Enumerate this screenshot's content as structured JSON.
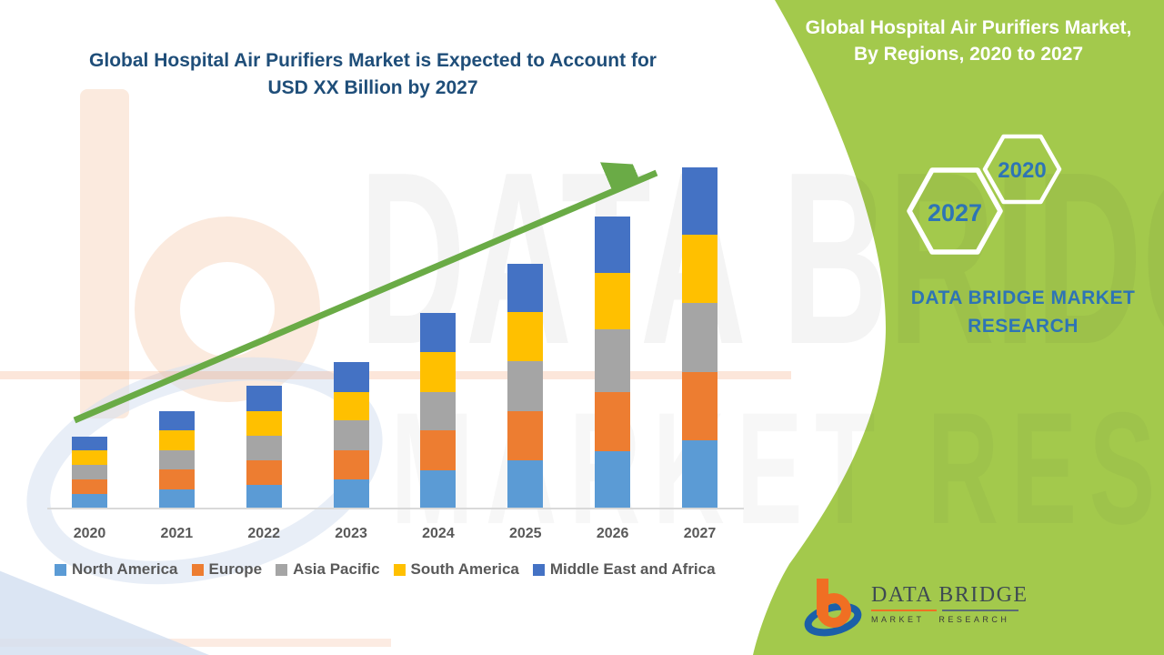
{
  "page": {
    "background": "#FFFFFF"
  },
  "main_title": {
    "line1": "Global Hospital Air Purifiers Market is Expected to Account for",
    "line2": "USD XX Billion by 2027",
    "color": "#1F4E79"
  },
  "side_panel": {
    "title_line1": "Global Hospital Air Purifiers Market,",
    "title_line2": "By Regions, 2020 to 2027",
    "hexagon_small_year": "2020",
    "hexagon_large_year": "2027",
    "brand_line1": "DATA BRIDGE MARKET",
    "brand_line2": "RESEARCH",
    "bg_color": "#A3C94C",
    "title_color": "#FFFFFF",
    "accent_text_color": "#2E74B5",
    "hexagon_outline_color": "#FFFFFF"
  },
  "chart_data": {
    "type": "bar",
    "stacked": true,
    "title": "Global Hospital Air Purifiers Market is Expected to Account for USD XX Billion by 2027",
    "xlabel": "",
    "ylabel": "",
    "units": "relative market index (values shown as XX, heights estimated from pixels; 2027 total = 100)",
    "value_axis_visible": false,
    "grid": false,
    "legend_position": "bottom",
    "ylim": [
      0,
      105
    ],
    "axis_line_color": "#D9D9D9",
    "label_color": "#595959",
    "trend_arrow": true,
    "arrow_color": "#6AAB46",
    "categories": [
      "2020",
      "2021",
      "2022",
      "2023",
      "2024",
      "2025",
      "2026",
      "2027"
    ],
    "series": [
      {
        "name": "North America",
        "color": "#5B9BD5",
        "values": [
          4.3,
          5.6,
          6.9,
          8.5,
          11.2,
          14.1,
          16.8,
          20.0
        ]
      },
      {
        "name": "Europe",
        "color": "#ED7D31",
        "values": [
          4.3,
          5.9,
          7.2,
          8.5,
          11.7,
          14.4,
          17.3,
          20.0
        ]
      },
      {
        "name": "Asia Pacific",
        "color": "#A5A5A5",
        "values": [
          4.3,
          5.6,
          7.2,
          8.8,
          11.2,
          14.7,
          18.4,
          20.3
        ]
      },
      {
        "name": "South America",
        "color": "#FFC000",
        "values": [
          4.3,
          5.9,
          7.2,
          8.3,
          11.7,
          14.4,
          16.5,
          20.0
        ]
      },
      {
        "name": "Middle East and Africa",
        "color": "#4472C4",
        "values": [
          4.0,
          5.6,
          7.5,
          8.8,
          11.5,
          14.1,
          16.5,
          19.7
        ]
      }
    ],
    "totals_by_year": [
      21.2,
      28.6,
      36.0,
      42.9,
      57.3,
      71.7,
      85.5,
      100.0
    ]
  },
  "watermark": {
    "line1": "DATA BRIDGE",
    "line2": "MARKET RESEARCH"
  },
  "footer_logo": {
    "name": "DATA BRIDGE",
    "sub": "MARKET RESEARCH"
  }
}
